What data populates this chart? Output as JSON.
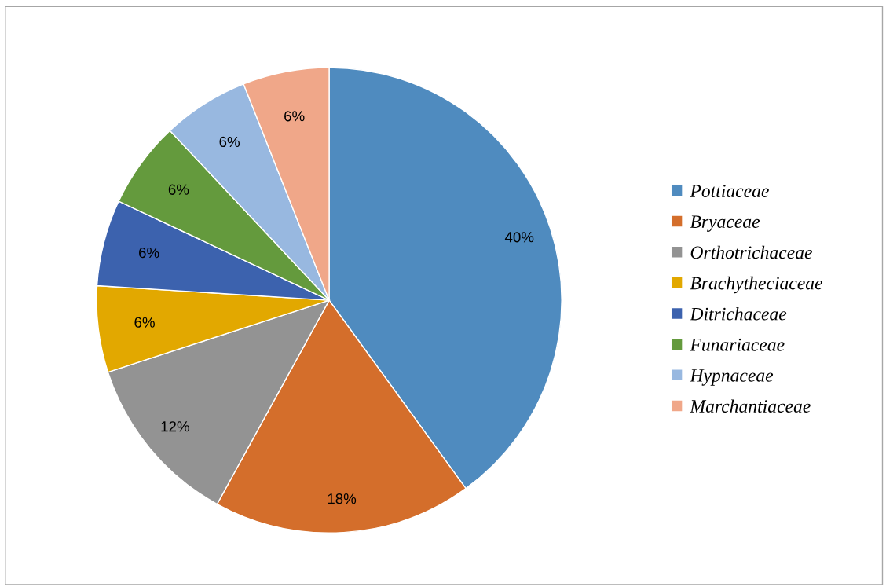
{
  "chart_data": {
    "type": "pie",
    "categories": [
      "Pottiaceae",
      "Bryaceae",
      "Orthotrichaceae",
      "Brachytheciaceae",
      "Ditrichaceae",
      "Funariaceae",
      "Hypnaceae",
      "Marchantiaceae"
    ],
    "values": [
      40,
      18,
      12,
      6,
      6,
      6,
      6,
      6
    ],
    "value_labels": [
      "40%",
      "18%",
      "12%",
      "6%",
      "6%",
      "6%",
      "6%",
      "6%"
    ],
    "colors": [
      "#4f8bbf",
      "#d46e2b",
      "#939393",
      "#e2a800",
      "#3c62ae",
      "#649a3d",
      "#98b8e0",
      "#f0a789"
    ],
    "legend": "right"
  }
}
